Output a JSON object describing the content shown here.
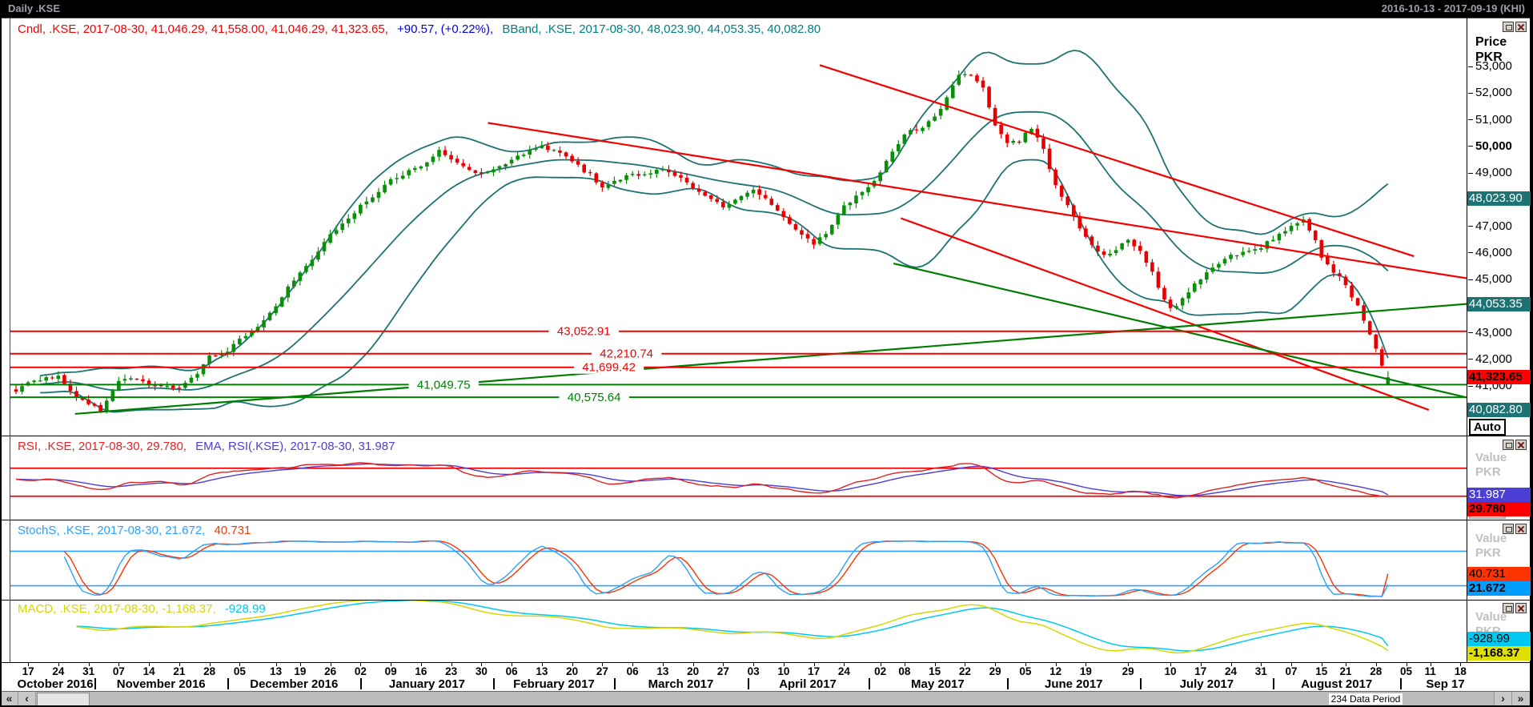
{
  "titlebar": {
    "title": "Daily .KSE",
    "range": "2016-10-13 - 2017-09-19 (KHI)"
  },
  "main_panel": {
    "legend": {
      "cndl": "Cndl, .KSE, 2017-08-30, 41,046.29, 41,558.00, 41,046.29, 41,323.65,",
      "change": "+90.57, (+0.22%),",
      "bband": "BBand, .KSE, 2017-08-30, 48,023.90, 44,053.35, 40,082.80"
    },
    "axis_title": {
      "line1": "Price",
      "line2": "PKR"
    },
    "ticks": [
      {
        "label": "53,000",
        "value": 53000
      },
      {
        "label": "52,000",
        "value": 52000
      },
      {
        "label": "51,000",
        "value": 51000
      },
      {
        "label": "50,000",
        "value": 50000,
        "bold": true
      },
      {
        "label": "49,000",
        "value": 49000
      },
      {
        "label": "47,000",
        "value": 47000
      },
      {
        "label": "46,000",
        "value": 46000
      },
      {
        "label": "45,000",
        "value": 45000
      },
      {
        "label": "43,000",
        "value": 43000
      },
      {
        "label": "42,000",
        "value": 42000
      },
      {
        "label": "41,000",
        "value": 41000
      }
    ],
    "badges": [
      {
        "label": "48,023.90",
        "value": 48023.9,
        "bg": "#1d7373",
        "fg": "#ffffff"
      },
      {
        "label": "44,053.35",
        "value": 44053.35,
        "bg": "#1d7373",
        "fg": "#ffffff"
      },
      {
        "label": "41,323.65",
        "value": 41323.65,
        "bg": "#ff0000",
        "fg": "#000000",
        "bold": true
      },
      {
        "label": "40,082.80",
        "value": 40082.8,
        "bg": "#1d7373",
        "fg": "#ffffff"
      }
    ],
    "auto_label": "Auto"
  },
  "indicator_panels": [
    {
      "id": "rsi",
      "legend_parts": [
        {
          "text": "RSI, .KSE, 2017-08-30, 29.780,",
          "color": "#ee2020"
        },
        {
          "text": "EMA, RSI(.KSE), 2017-08-30, 31.987",
          "color": "#4c3fd6"
        }
      ],
      "value_label": "Value",
      "unit_label": "PKR",
      "auto_label": "Auto",
      "badges": [
        {
          "label": "31.987",
          "value": 31.987,
          "bg": "#4c3fd6",
          "fg": "#ffffff"
        },
        {
          "label": "29.780",
          "value": 29.78,
          "bg": "#ff0000",
          "fg": "#000000",
          "bold": true
        }
      ]
    },
    {
      "id": "stoch",
      "legend_parts": [
        {
          "text": "StochS, .KSE, 2017-08-30, 21.672,",
          "color": "#2aa0ff"
        },
        {
          "text": "40.731",
          "color": "#ff3300"
        }
      ],
      "value_label": "Value",
      "unit_label": "PKR",
      "auto_label": "Auto",
      "badges": [
        {
          "label": "40.731",
          "value": 40.731,
          "bg": "#ff3300",
          "fg": "#000000"
        },
        {
          "label": "21.672",
          "value": 21.672,
          "bg": "#009dff",
          "fg": "#000000",
          "bold": true
        }
      ]
    },
    {
      "id": "macd",
      "legend_parts": [
        {
          "text": "MACD, .KSE, 2017-08-30, -1,168.37,",
          "color": "#d6d600"
        },
        {
          "text": "-928.99",
          "color": "#00c8f0"
        }
      ],
      "value_label": "Value",
      "unit_label": "PKR",
      "auto_label": "Auto",
      "badges": [
        {
          "label": "-928.99",
          "value": -928.99,
          "bg": "#00c8f0",
          "fg": "#000000"
        },
        {
          "label": "-1,168.37",
          "value": -1168.37,
          "bg": "#e0e000",
          "fg": "#000000",
          "bold": true
        }
      ]
    }
  ],
  "xaxis": {
    "total": 244,
    "boundaries": [
      13,
      35,
      57,
      79,
      99,
      121,
      141,
      164,
      186,
      208,
      229
    ],
    "months": [
      {
        "label": "October 2016",
        "ticks": [
          {
            "day": "17",
            "i": 2
          },
          {
            "day": "24",
            "i": 7
          },
          {
            "day": "31",
            "i": 12
          }
        ]
      },
      {
        "label": "November 2016",
        "ticks": [
          {
            "day": "07",
            "i": 17
          },
          {
            "day": "14",
            "i": 22
          },
          {
            "day": "21",
            "i": 27
          },
          {
            "day": "28",
            "i": 32
          }
        ]
      },
      {
        "label": "December 2016",
        "ticks": [
          {
            "day": "05",
            "i": 37
          },
          {
            "day": "13",
            "i": 43
          },
          {
            "day": "19",
            "i": 47
          },
          {
            "day": "26",
            "i": 52
          }
        ]
      },
      {
        "label": "January 2017",
        "ticks": [
          {
            "day": "02",
            "i": 57
          },
          {
            "day": "09",
            "i": 62
          },
          {
            "day": "16",
            "i": 67
          },
          {
            "day": "23",
            "i": 72
          },
          {
            "day": "30",
            "i": 77
          }
        ]
      },
      {
        "label": "February 2017",
        "ticks": [
          {
            "day": "06",
            "i": 82
          },
          {
            "day": "13",
            "i": 87
          },
          {
            "day": "20",
            "i": 92
          },
          {
            "day": "27",
            "i": 97
          }
        ]
      },
      {
        "label": "March 2017",
        "ticks": [
          {
            "day": "06",
            "i": 102
          },
          {
            "day": "13",
            "i": 107
          },
          {
            "day": "20",
            "i": 112
          },
          {
            "day": "27",
            "i": 117
          }
        ]
      },
      {
        "label": "April 2017",
        "ticks": [
          {
            "day": "03",
            "i": 122
          },
          {
            "day": "10",
            "i": 127
          },
          {
            "day": "17",
            "i": 132
          },
          {
            "day": "24",
            "i": 137
          }
        ]
      },
      {
        "label": "May 2017",
        "ticks": [
          {
            "day": "02",
            "i": 143
          },
          {
            "day": "08",
            "i": 147
          },
          {
            "day": "15",
            "i": 152
          },
          {
            "day": "22",
            "i": 157
          },
          {
            "day": "29",
            "i": 162
          }
        ]
      },
      {
        "label": "June 2017",
        "ticks": [
          {
            "day": "05",
            "i": 167
          },
          {
            "day": "12",
            "i": 172
          },
          {
            "day": "19",
            "i": 177
          },
          {
            "day": "29",
            "i": 184
          }
        ]
      },
      {
        "label": "July 2017",
        "ticks": [
          {
            "day": "10",
            "i": 191
          },
          {
            "day": "17",
            "i": 196
          },
          {
            "day": "24",
            "i": 201
          },
          {
            "day": "31",
            "i": 206
          }
        ]
      },
      {
        "label": "August 2017",
        "ticks": [
          {
            "day": "07",
            "i": 211
          },
          {
            "day": "15",
            "i": 216
          },
          {
            "day": "21",
            "i": 220
          },
          {
            "day": "28",
            "i": 225
          }
        ]
      },
      {
        "label": "Sep 17",
        "ticks": [
          {
            "day": "05",
            "i": 230
          },
          {
            "day": "11",
            "i": 234
          },
          {
            "day": "18",
            "i": 239
          }
        ]
      }
    ]
  },
  "scrollbar": {
    "label": "234 Data Period",
    "first": "«",
    "prev": "‹",
    "next": "›",
    "last": "»"
  },
  "chart_data": {
    "type": "candlestick",
    "instrument": ".KSE",
    "interval": "Daily",
    "cursor_date": "2017-08-30",
    "bars_total": 234,
    "price_panel": {
      "ylim": [
        39200,
        54300
      ],
      "yticks": [
        41000,
        42000,
        43000,
        45000,
        46000,
        47000,
        49000,
        50000,
        51000,
        52000,
        53000
      ],
      "last_candle": {
        "o": 41046.29,
        "h": 41558.0,
        "l": 41046.29,
        "c": 41323.65,
        "change": 90.57,
        "change_pct": 0.22
      },
      "bollinger": {
        "period": 20,
        "upper": 48023.9,
        "middle": 44053.35,
        "lower": 40082.8,
        "color": "#1d7373"
      },
      "up_color": "#0b8f0b",
      "down_color": "#e80000",
      "close_anchors": [
        [
          0,
          40850
        ],
        [
          2,
          41050
        ],
        [
          7,
          41400
        ],
        [
          10,
          40700
        ],
        [
          12,
          40350
        ],
        [
          14,
          39980
        ],
        [
          17,
          41150
        ],
        [
          20,
          41350
        ],
        [
          22,
          41120
        ],
        [
          25,
          40900
        ],
        [
          27,
          40850
        ],
        [
          30,
          41400
        ],
        [
          32,
          42150
        ],
        [
          35,
          42350
        ],
        [
          37,
          42700
        ],
        [
          40,
          43100
        ],
        [
          43,
          43950
        ],
        [
          45,
          44800
        ],
        [
          47,
          45350
        ],
        [
          50,
          46000
        ],
        [
          52,
          46550
        ],
        [
          55,
          47300
        ],
        [
          57,
          47950
        ],
        [
          60,
          48300
        ],
        [
          62,
          48650
        ],
        [
          65,
          49000
        ],
        [
          67,
          49250
        ],
        [
          70,
          49950
        ],
        [
          72,
          49500
        ],
        [
          75,
          49000
        ],
        [
          77,
          48850
        ],
        [
          80,
          49300
        ],
        [
          82,
          49650
        ],
        [
          85,
          49800
        ],
        [
          87,
          49900
        ],
        [
          90,
          49700
        ],
        [
          92,
          49550
        ],
        [
          95,
          49000
        ],
        [
          97,
          48450
        ],
        [
          100,
          48650
        ],
        [
          102,
          48900
        ],
        [
          105,
          49100
        ],
        [
          107,
          49200
        ],
        [
          110,
          48700
        ],
        [
          112,
          48300
        ],
        [
          115,
          48000
        ],
        [
          117,
          47850
        ],
        [
          120,
          48100
        ],
        [
          122,
          48300
        ],
        [
          125,
          47800
        ],
        [
          127,
          47300
        ],
        [
          130,
          46800
        ],
        [
          132,
          46350
        ],
        [
          135,
          46900
        ],
        [
          137,
          47650
        ],
        [
          140,
          48300
        ],
        [
          143,
          49100
        ],
        [
          145,
          49800
        ],
        [
          147,
          50350
        ],
        [
          150,
          50700
        ],
        [
          152,
          51150
        ],
        [
          154,
          51900
        ],
        [
          156,
          52800
        ],
        [
          158,
          52550
        ],
        [
          160,
          52100
        ],
        [
          162,
          50700
        ],
        [
          164,
          50150
        ],
        [
          166,
          50300
        ],
        [
          168,
          50750
        ],
        [
          170,
          49800
        ],
        [
          172,
          48400
        ],
        [
          175,
          47300
        ],
        [
          177,
          46600
        ],
        [
          179,
          46100
        ],
        [
          181,
          45950
        ],
        [
          184,
          46450
        ],
        [
          186,
          46000
        ],
        [
          188,
          45300
        ],
        [
          190,
          44300
        ],
        [
          191,
          43950
        ],
        [
          193,
          44300
        ],
        [
          196,
          44950
        ],
        [
          199,
          45500
        ],
        [
          201,
          45950
        ],
        [
          204,
          46100
        ],
        [
          206,
          46200
        ],
        [
          209,
          46600
        ],
        [
          211,
          46950
        ],
        [
          213,
          47250
        ],
        [
          215,
          46500
        ],
        [
          216,
          45950
        ],
        [
          218,
          45300
        ],
        [
          220,
          44700
        ],
        [
          222,
          43900
        ],
        [
          223,
          43400
        ],
        [
          224,
          42900
        ],
        [
          225,
          42450
        ],
        [
          226,
          41900
        ],
        [
          227,
          41324
        ]
      ],
      "hlines": [
        {
          "label": "43,052.91",
          "value": 43052.91,
          "color": "#f40000",
          "label_t": 0.385
        },
        {
          "label": "42,210.74",
          "value": 42210.74,
          "color": "#f40000",
          "label_t": 0.414
        },
        {
          "label": "41,699.42",
          "value": 41699.42,
          "color": "#f40000",
          "label_t": 0.402
        },
        {
          "label": "41,049.75",
          "value": 41049.75,
          "color": "#008000",
          "label_t": 0.29
        },
        {
          "label": "40,575.64",
          "value": 40575.64,
          "color": "#008000",
          "label_t": 0.392
        }
      ],
      "trendlines": [
        {
          "t1": 0.32,
          "p1": 50880,
          "t2": 1.0,
          "p2": 44900,
          "color": "#f40000"
        },
        {
          "t1": 0.545,
          "p1": 53050,
          "t2": 0.948,
          "p2": 45870,
          "color": "#f40000"
        },
        {
          "t1": 0.6,
          "p1": 47300,
          "t2": 0.958,
          "p2": 40100,
          "color": "#f40000"
        },
        {
          "t1": 0.04,
          "p1": 39950,
          "t2": 1.0,
          "p2": 44150,
          "color": "#007d00"
        },
        {
          "t1": 0.595,
          "p1": 45600,
          "t2": 0.985,
          "p2": 40550,
          "color": "#007d00"
        }
      ]
    },
    "rsi_panel": {
      "ylim": [
        0,
        100
      ],
      "levels": [
        30,
        70
      ],
      "level_color": "#f40000",
      "last": {
        "rsi": 29.78,
        "ema": 31.987
      },
      "rsi_color": "#e02020",
      "ema_color": "#4c3fd6",
      "anchors": [
        [
          0,
          52
        ],
        [
          5,
          56
        ],
        [
          10,
          44
        ],
        [
          13,
          37
        ],
        [
          17,
          49
        ],
        [
          22,
          52
        ],
        [
          27,
          45
        ],
        [
          32,
          63
        ],
        [
          37,
          66
        ],
        [
          43,
          71
        ],
        [
          47,
          75
        ],
        [
          52,
          75
        ],
        [
          57,
          77
        ],
        [
          62,
          75
        ],
        [
          67,
          73
        ],
        [
          70,
          76
        ],
        [
          74,
          62
        ],
        [
          77,
          57
        ],
        [
          82,
          64
        ],
        [
          87,
          66
        ],
        [
          92,
          60
        ],
        [
          97,
          47
        ],
        [
          102,
          53
        ],
        [
          107,
          57
        ],
        [
          112,
          47
        ],
        [
          117,
          43
        ],
        [
          122,
          47
        ],
        [
          127,
          39
        ],
        [
          132,
          34
        ],
        [
          137,
          47
        ],
        [
          143,
          58
        ],
        [
          147,
          66
        ],
        [
          152,
          70
        ],
        [
          156,
          77
        ],
        [
          159,
          72
        ],
        [
          162,
          53
        ],
        [
          164,
          48
        ],
        [
          168,
          55
        ],
        [
          172,
          41
        ],
        [
          177,
          34
        ],
        [
          181,
          32
        ],
        [
          184,
          38
        ],
        [
          188,
          32
        ],
        [
          191,
          26
        ],
        [
          196,
          37
        ],
        [
          201,
          47
        ],
        [
          206,
          51
        ],
        [
          211,
          56
        ],
        [
          213,
          59
        ],
        [
          216,
          46
        ],
        [
          220,
          39
        ],
        [
          223,
          33
        ],
        [
          225,
          30
        ],
        [
          227,
          29.78
        ]
      ]
    },
    "stoch_panel": {
      "ylim": [
        0,
        100
      ],
      "levels": [
        20,
        80
      ],
      "level_color": "#2aa0ff",
      "params": "14,3,3",
      "last": {
        "k": 21.672,
        "d": 40.731
      },
      "k_color": "#2aa0ff",
      "d_color": "#ff3300"
    },
    "macd_panel": {
      "params": "12,26,9",
      "last": {
        "macd": -1168.37,
        "signal": -928.99
      },
      "macd_color": "#d6d600",
      "signal_color": "#00c8f0"
    }
  }
}
